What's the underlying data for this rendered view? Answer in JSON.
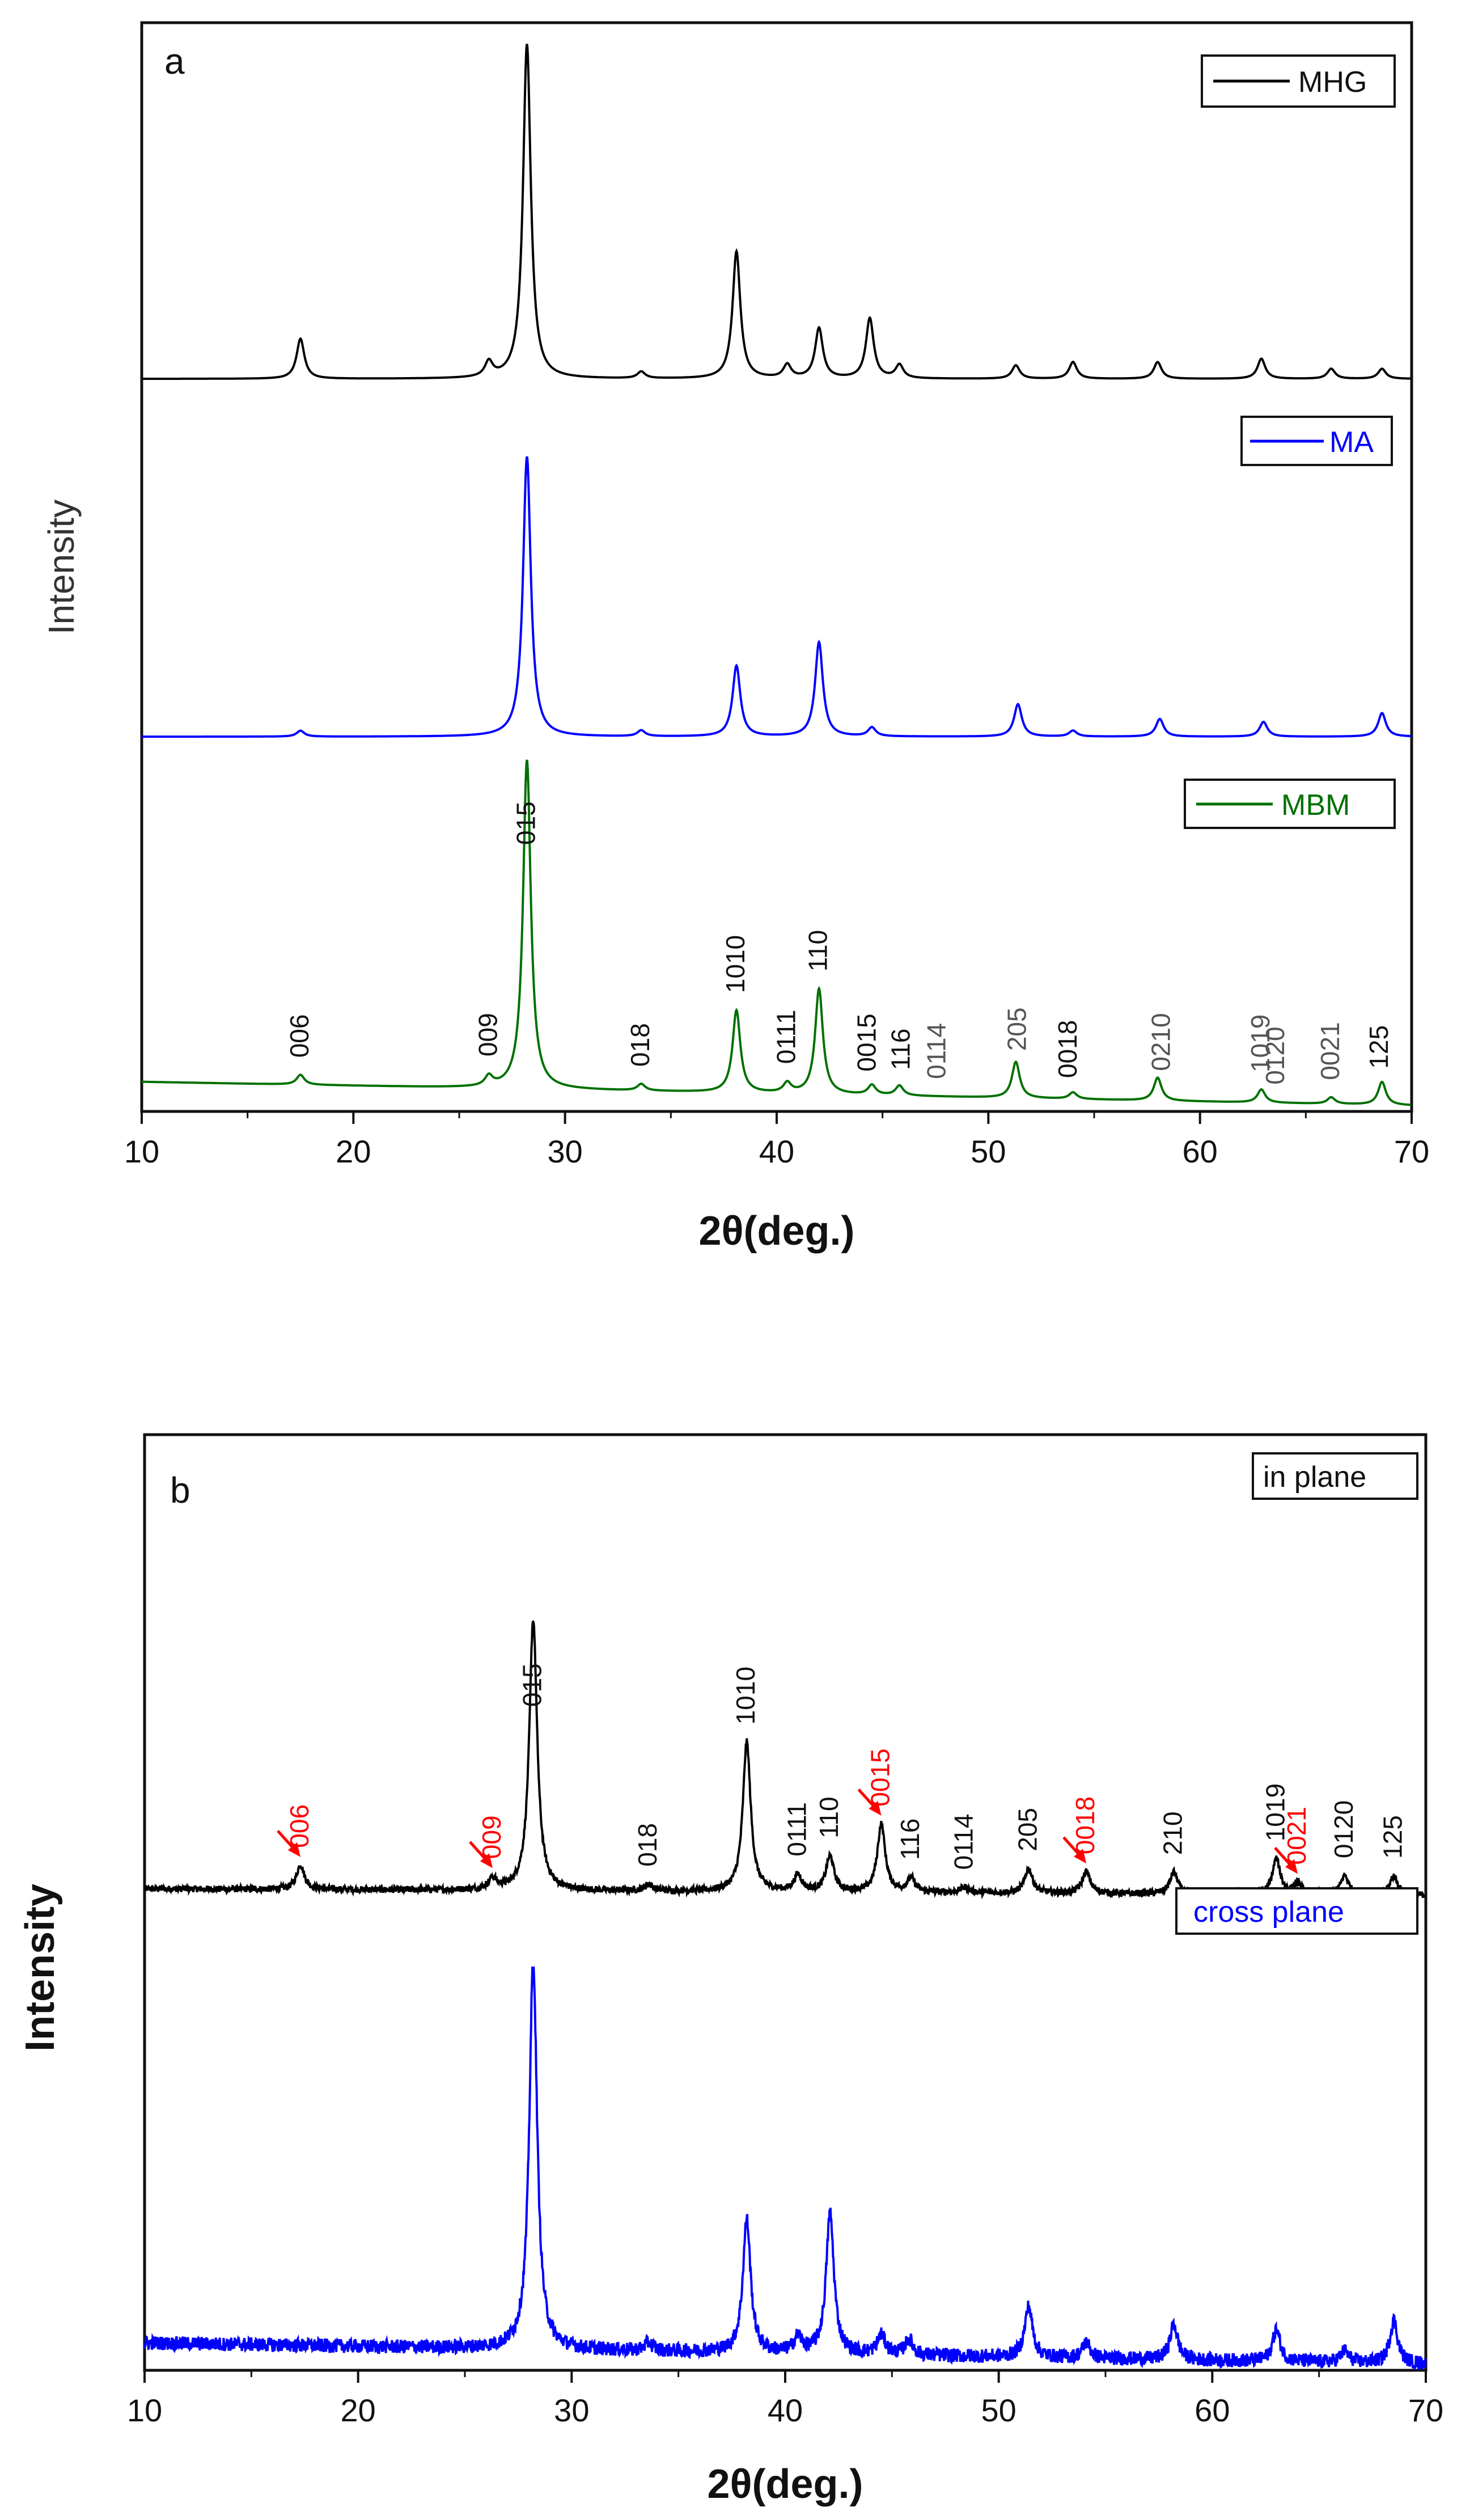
{
  "chart_data": [
    {
      "panel": "a",
      "type": "line",
      "xlabel": "2θ(deg.)",
      "ylabel": "Intensity",
      "xlim": [
        10,
        70
      ],
      "xticks": [
        "10",
        "20",
        "30",
        "40",
        "50",
        "60",
        "70"
      ],
      "series": [
        {
          "name": "MHG",
          "color": "#000000",
          "baseline": 0.02,
          "slope": -0.0,
          "peaks": [
            [
              17.5,
              0.12
            ],
            [
              26.4,
              0.045
            ],
            [
              28.2,
              1.0
            ],
            [
              33.6,
              0.02
            ],
            [
              38.1,
              0.38
            ],
            [
              40.5,
              0.04
            ],
            [
              42.0,
              0.15
            ],
            [
              44.4,
              0.18
            ],
            [
              45.8,
              0.04
            ],
            [
              51.3,
              0.04
            ],
            [
              54.0,
              0.05
            ],
            [
              58.0,
              0.05
            ],
            [
              62.9,
              0.06
            ],
            [
              66.2,
              0.03
            ],
            [
              68.6,
              0.03
            ]
          ]
        },
        {
          "name": "MA",
          "color": "#0000ff",
          "baseline": 0.04,
          "slope": -0.0,
          "peaks": [
            [
              17.5,
              0.02
            ],
            [
              28.2,
              0.95
            ],
            [
              33.6,
              0.02
            ],
            [
              38.1,
              0.24
            ],
            [
              42.0,
              0.32
            ],
            [
              44.5,
              0.03
            ],
            [
              51.4,
              0.11
            ],
            [
              54.0,
              0.02
            ],
            [
              58.1,
              0.06
            ],
            [
              63.0,
              0.05
            ],
            [
              68.6,
              0.08
            ]
          ]
        },
        {
          "name": "MBM",
          "color": "#007000",
          "baseline": 0.09,
          "slope": -0.0012,
          "peaks": [
            [
              17.5,
              0.03
            ],
            [
              26.4,
              0.03
            ],
            [
              28.2,
              1.0
            ],
            [
              33.6,
              0.02
            ],
            [
              38.1,
              0.25
            ],
            [
              40.5,
              0.03
            ],
            [
              42.0,
              0.32
            ],
            [
              44.5,
              0.03
            ],
            [
              45.8,
              0.03
            ],
            [
              51.3,
              0.11
            ],
            [
              54.0,
              0.02
            ],
            [
              58.0,
              0.07
            ],
            [
              62.9,
              0.04
            ],
            [
              66.2,
              0.02
            ],
            [
              68.6,
              0.07
            ]
          ]
        }
      ],
      "peak_labels": [
        {
          "text": "006",
          "x": 17.5,
          "color": "#111111"
        },
        {
          "text": "009",
          "x": 26.4,
          "color": "#111111"
        },
        {
          "text": "015",
          "x": 28.2,
          "color": "#111111"
        },
        {
          "text": "018",
          "x": 33.6,
          "color": "#111111"
        },
        {
          "text": "1010",
          "x": 38.1,
          "color": "#111111"
        },
        {
          "text": "0111",
          "x": 40.5,
          "color": "#111111"
        },
        {
          "text": "110",
          "x": 42.0,
          "color": "#111111"
        },
        {
          "text": "0015",
          "x": 44.3,
          "color": "#111111"
        },
        {
          "text": "116",
          "x": 45.9,
          "color": "#111111"
        },
        {
          "text": "0114",
          "x": 47.6,
          "color": "#555555"
        },
        {
          "text": "205",
          "x": 51.4,
          "color": "#555555"
        },
        {
          "text": "0018",
          "x": 53.8,
          "color": "#111111"
        },
        {
          "text": "0210",
          "x": 58.2,
          "color": "#555555"
        },
        {
          "text": "1019",
          "x": 62.9,
          "color": "#555555"
        },
        {
          "text": "0120",
          "x": 63.6,
          "color": "#555555"
        },
        {
          "text": "0021",
          "x": 66.2,
          "color": "#555555"
        },
        {
          "text": "125",
          "x": 68.5,
          "color": "#111111"
        }
      ]
    },
    {
      "panel": "b",
      "type": "line",
      "xlabel": "2θ(deg.)",
      "ylabel": "Intensity",
      "xlim": [
        10,
        70
      ],
      "xticks": [
        "10",
        "20",
        "30",
        "40",
        "50",
        "60",
        "70"
      ],
      "series": [
        {
          "name": "in plane",
          "color": "#000000",
          "baseline": 0.04,
          "slope": -0.0004,
          "noise": 0.012,
          "peaks": [
            [
              17.3,
              0.09
            ],
            [
              26.3,
              0.04
            ],
            [
              28.2,
              1.0
            ],
            [
              33.6,
              0.025
            ],
            [
              38.2,
              0.55
            ],
            [
              40.6,
              0.06
            ],
            [
              42.1,
              0.13
            ],
            [
              44.5,
              0.25
            ],
            [
              45.9,
              0.05
            ],
            [
              48.4,
              0.02
            ],
            [
              51.4,
              0.09
            ],
            [
              54.1,
              0.08
            ],
            [
              58.2,
              0.08
            ],
            [
              63.0,
              0.13
            ],
            [
              64.0,
              0.04
            ],
            [
              66.2,
              0.07
            ],
            [
              68.5,
              0.07
            ]
          ]
        },
        {
          "name": "cross plane",
          "color": "#0000ff",
          "baseline": 0.07,
          "slope": -0.0009,
          "noise": 0.018,
          "peaks": [
            [
              28.2,
              1.0
            ],
            [
              33.6,
              0.02
            ],
            [
              38.2,
              0.34
            ],
            [
              40.6,
              0.04
            ],
            [
              42.1,
              0.36
            ],
            [
              44.5,
              0.05
            ],
            [
              45.8,
              0.04
            ],
            [
              51.4,
              0.13
            ],
            [
              54.1,
              0.04
            ],
            [
              58.2,
              0.09
            ],
            [
              63.0,
              0.08
            ],
            [
              66.2,
              0.03
            ],
            [
              68.5,
              0.11
            ]
          ]
        }
      ],
      "peak_labels": [
        {
          "text": "006",
          "x": 17.3,
          "color": "#ff0000",
          "arrow": true
        },
        {
          "text": "009",
          "x": 26.3,
          "color": "#ff0000",
          "arrow": true
        },
        {
          "text": "015",
          "x": 28.2,
          "color": "#111111"
        },
        {
          "text": "018",
          "x": 33.6,
          "color": "#111111"
        },
        {
          "text": "1010",
          "x": 38.2,
          "color": "#111111"
        },
        {
          "text": "0111",
          "x": 40.6,
          "color": "#111111"
        },
        {
          "text": "110",
          "x": 42.1,
          "color": "#111111"
        },
        {
          "text": "0015",
          "x": 44.5,
          "color": "#ff0000",
          "arrow": true
        },
        {
          "text": "116",
          "x": 45.9,
          "color": "#111111"
        },
        {
          "text": "0114",
          "x": 48.4,
          "color": "#111111"
        },
        {
          "text": "205",
          "x": 51.4,
          "color": "#111111"
        },
        {
          "text": "0018",
          "x": 54.1,
          "color": "#ff0000",
          "arrow": true
        },
        {
          "text": "210",
          "x": 58.2,
          "color": "#111111"
        },
        {
          "text": "1019",
          "x": 63.0,
          "color": "#111111"
        },
        {
          "text": "0021",
          "x": 64.0,
          "color": "#ff0000",
          "arrow": true
        },
        {
          "text": "0120",
          "x": 66.2,
          "color": "#111111"
        },
        {
          "text": "125",
          "x": 68.5,
          "color": "#111111"
        }
      ]
    }
  ]
}
